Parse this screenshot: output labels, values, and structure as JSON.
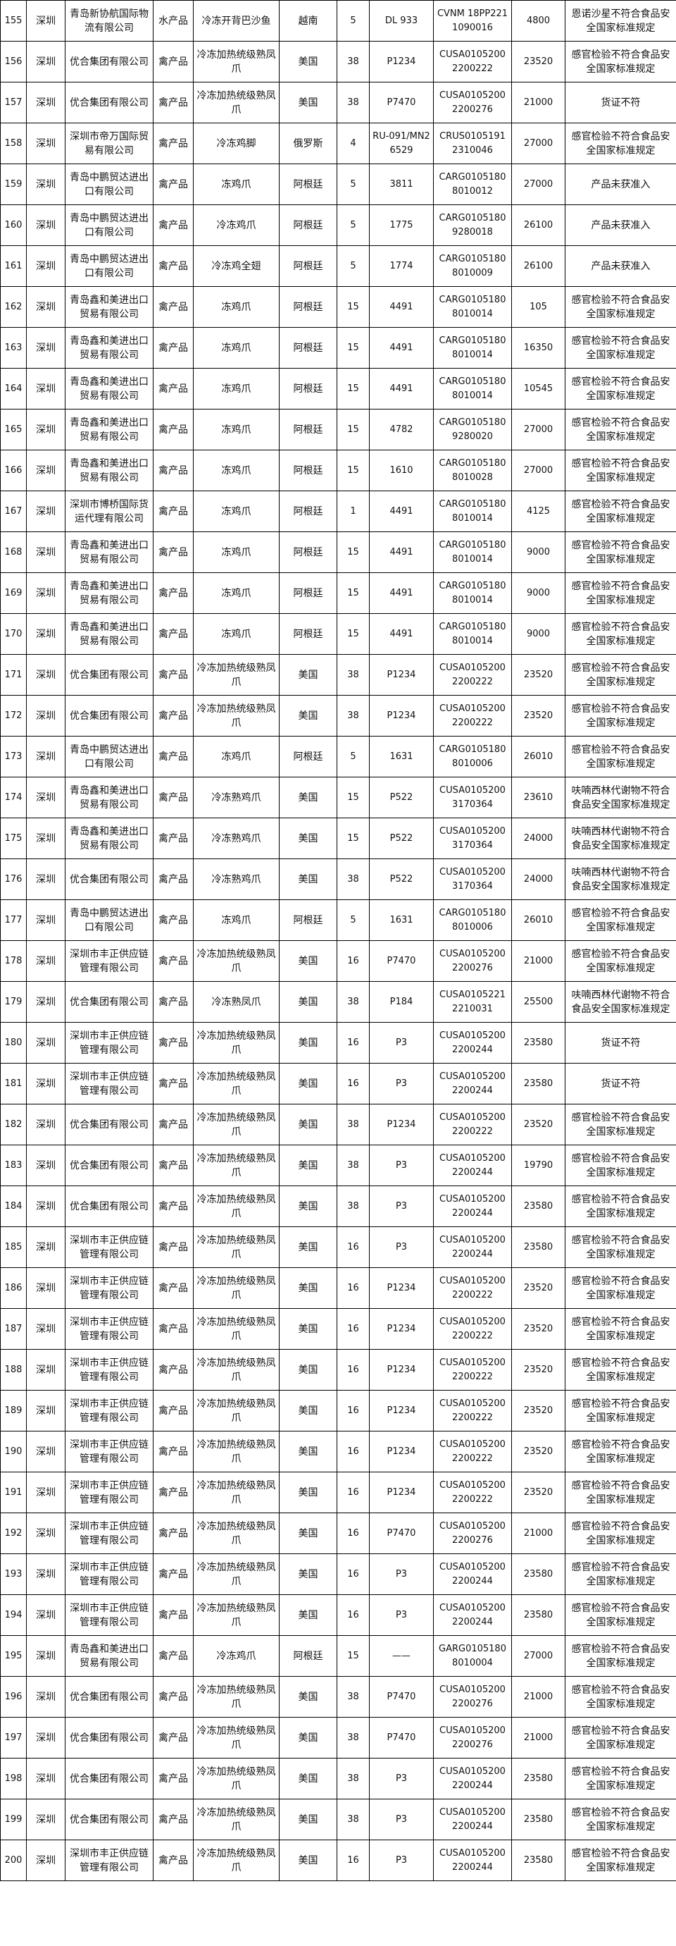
{
  "table": {
    "rows": [
      [
        "155",
        "深圳",
        "青岛新协航国际物流有限公司",
        "水产品",
        "冷冻开背巴沙鱼",
        "越南",
        "5",
        "DL 933",
        "CVNM 18PP2211090016",
        "4800",
        "恩诺沙星不符合食品安全国家标准规定"
      ],
      [
        "156",
        "深圳",
        "优合集团有限公司",
        "禽产品",
        "冷冻加热统级熟凤爪",
        "美国",
        "38",
        "P1234",
        "CUSA01052002200222",
        "23520",
        "感官检验不符合食品安全国家标准规定"
      ],
      [
        "157",
        "深圳",
        "优合集团有限公司",
        "禽产品",
        "冷冻加热统级熟凤爪",
        "美国",
        "38",
        "P7470",
        "CUSA01052002200276",
        "21000",
        "货证不符"
      ],
      [
        "158",
        "深圳",
        "深圳市帝万国际贸易有限公司",
        "禽产品",
        "冷冻鸡脚",
        "俄罗斯",
        "4",
        "RU-091/MN26529",
        "CRUS01051912310046",
        "27000",
        "感官检验不符合食品安全国家标准规定"
      ],
      [
        "159",
        "深圳",
        "青岛中鹏贸达进出口有限公司",
        "禽产品",
        "冻鸡爪",
        "阿根廷",
        "5",
        "3811",
        "CARG01051808010012",
        "27000",
        "产品未获准入"
      ],
      [
        "160",
        "深圳",
        "青岛中鹏贸达进出口有限公司",
        "禽产品",
        "冷冻鸡爪",
        "阿根廷",
        "5",
        "1775",
        "CARG01051809280018",
        "26100",
        "产品未获准入"
      ],
      [
        "161",
        "深圳",
        "青岛中鹏贸达进出口有限公司",
        "禽产品",
        "冷冻鸡全翅",
        "阿根廷",
        "5",
        "1774",
        "CARG01051808010009",
        "26100",
        "产品未获准入"
      ],
      [
        "162",
        "深圳",
        "青岛鑫和美进出口贸易有限公司",
        "禽产品",
        "冻鸡爪",
        "阿根廷",
        "15",
        "4491",
        "CARG01051808010014",
        "105",
        "感官检验不符合食品安全国家标准规定"
      ],
      [
        "163",
        "深圳",
        "青岛鑫和美进出口贸易有限公司",
        "禽产品",
        "冻鸡爪",
        "阿根廷",
        "15",
        "4491",
        "CARG01051808010014",
        "16350",
        "感官检验不符合食品安全国家标准规定"
      ],
      [
        "164",
        "深圳",
        "青岛鑫和美进出口贸易有限公司",
        "禽产品",
        "冻鸡爪",
        "阿根廷",
        "15",
        "4491",
        "CARG01051808010014",
        "10545",
        "感官检验不符合食品安全国家标准规定"
      ],
      [
        "165",
        "深圳",
        "青岛鑫和美进出口贸易有限公司",
        "禽产品",
        "冻鸡爪",
        "阿根廷",
        "15",
        "4782",
        "CARG01051809280020",
        "27000",
        "感官检验不符合食品安全国家标准规定"
      ],
      [
        "166",
        "深圳",
        "青岛鑫和美进出口贸易有限公司",
        "禽产品",
        "冻鸡爪",
        "阿根廷",
        "15",
        "1610",
        "CARG01051808010028",
        "27000",
        "感官检验不符合食品安全国家标准规定"
      ],
      [
        "167",
        "深圳",
        "深圳市博桥国际货运代理有限公司",
        "禽产品",
        "冻鸡爪",
        "阿根廷",
        "1",
        "4491",
        "CARG01051808010014",
        "4125",
        "感官检验不符合食品安全国家标准规定"
      ],
      [
        "168",
        "深圳",
        "青岛鑫和美进出口贸易有限公司",
        "禽产品",
        "冻鸡爪",
        "阿根廷",
        "15",
        "4491",
        "CARG01051808010014",
        "9000",
        "感官检验不符合食品安全国家标准规定"
      ],
      [
        "169",
        "深圳",
        "青岛鑫和美进出口贸易有限公司",
        "禽产品",
        "冻鸡爪",
        "阿根廷",
        "15",
        "4491",
        "CARG01051808010014",
        "9000",
        "感官检验不符合食品安全国家标准规定"
      ],
      [
        "170",
        "深圳",
        "青岛鑫和美进出口贸易有限公司",
        "禽产品",
        "冻鸡爪",
        "阿根廷",
        "15",
        "4491",
        "CARG01051808010014",
        "9000",
        "感官检验不符合食品安全国家标准规定"
      ],
      [
        "171",
        "深圳",
        "优合集团有限公司",
        "禽产品",
        "冷冻加热统级熟凤爪",
        "美国",
        "38",
        "P1234",
        "CUSA01052002200222",
        "23520",
        "感官检验不符合食品安全国家标准规定"
      ],
      [
        "172",
        "深圳",
        "优合集团有限公司",
        "禽产品",
        "冷冻加热统级熟凤爪",
        "美国",
        "38",
        "P1234",
        "CUSA01052002200222",
        "23520",
        "感官检验不符合食品安全国家标准规定"
      ],
      [
        "173",
        "深圳",
        "青岛中鹏贸达进出口有限公司",
        "禽产品",
        "冻鸡爪",
        "阿根廷",
        "5",
        "1631",
        "CARG01051808010006",
        "26010",
        "感官检验不符合食品安全国家标准规定"
      ],
      [
        "174",
        "深圳",
        "青岛鑫和美进出口贸易有限公司",
        "禽产品",
        "冷冻熟鸡爪",
        "美国",
        "15",
        "P522",
        "CUSA01052003170364",
        "23610",
        "呋喃西林代谢物不符合食品安全国家标准规定"
      ],
      [
        "175",
        "深圳",
        "青岛鑫和美进出口贸易有限公司",
        "禽产品",
        "冷冻熟鸡爪",
        "美国",
        "15",
        "P522",
        "CUSA01052003170364",
        "24000",
        "呋喃西林代谢物不符合食品安全国家标准规定"
      ],
      [
        "176",
        "深圳",
        "优合集团有限公司",
        "禽产品",
        "冷冻熟鸡爪",
        "美国",
        "38",
        "P522",
        "CUSA01052003170364",
        "24000",
        "呋喃西林代谢物不符合食品安全国家标准规定"
      ],
      [
        "177",
        "深圳",
        "青岛中鹏贸达进出口有限公司",
        "禽产品",
        "冻鸡爪",
        "阿根廷",
        "5",
        "1631",
        "CARG01051808010006",
        "26010",
        "感官检验不符合食品安全国家标准规定"
      ],
      [
        "178",
        "深圳",
        "深圳市丰正供应链管理有限公司",
        "禽产品",
        "冷冻加热统级熟凤爪",
        "美国",
        "16",
        "P7470",
        "CUSA01052002200276",
        "21000",
        "感官检验不符合食品安全国家标准规定"
      ],
      [
        "179",
        "深圳",
        "优合集团有限公司",
        "禽产品",
        "冷冻熟凤爪",
        "美国",
        "38",
        "P184",
        "CUSA01052212210031",
        "25500",
        "呋喃西林代谢物不符合食品安全国家标准规定"
      ],
      [
        "180",
        "深圳",
        "深圳市丰正供应链管理有限公司",
        "禽产品",
        "冷冻加热统级熟凤爪",
        "美国",
        "16",
        "P3",
        "CUSA01052002200244",
        "23580",
        "货证不符"
      ],
      [
        "181",
        "深圳",
        "深圳市丰正供应链管理有限公司",
        "禽产品",
        "冷冻加热统级熟凤爪",
        "美国",
        "16",
        "P3",
        "CUSA01052002200244",
        "23580",
        "货证不符"
      ],
      [
        "182",
        "深圳",
        "优合集团有限公司",
        "禽产品",
        "冷冻加热统级熟凤爪",
        "美国",
        "38",
        "P1234",
        "CUSA01052002200222",
        "23520",
        "感官检验不符合食品安全国家标准规定"
      ],
      [
        "183",
        "深圳",
        "优合集团有限公司",
        "禽产品",
        "冷冻加热统级熟凤爪",
        "美国",
        "38",
        "P3",
        "CUSA01052002200244",
        "19790",
        "感官检验不符合食品安全国家标准规定"
      ],
      [
        "184",
        "深圳",
        "优合集团有限公司",
        "禽产品",
        "冷冻加热统级熟凤爪",
        "美国",
        "38",
        "P3",
        "CUSA01052002200244",
        "23580",
        "感官检验不符合食品安全国家标准规定"
      ],
      [
        "185",
        "深圳",
        "深圳市丰正供应链管理有限公司",
        "禽产品",
        "冷冻加热统级熟凤爪",
        "美国",
        "16",
        "P3",
        "CUSA01052002200244",
        "23580",
        "感官检验不符合食品安全国家标准规定"
      ],
      [
        "186",
        "深圳",
        "深圳市丰正供应链管理有限公司",
        "禽产品",
        "冷冻加热统级熟凤爪",
        "美国",
        "16",
        "P1234",
        "CUSA01052002200222",
        "23520",
        "感官检验不符合食品安全国家标准规定"
      ],
      [
        "187",
        "深圳",
        "深圳市丰正供应链管理有限公司",
        "禽产品",
        "冷冻加热统级熟凤爪",
        "美国",
        "16",
        "P1234",
        "CUSA01052002200222",
        "23520",
        "感官检验不符合食品安全国家标准规定"
      ],
      [
        "188",
        "深圳",
        "深圳市丰正供应链管理有限公司",
        "禽产品",
        "冷冻加热统级熟凤爪",
        "美国",
        "16",
        "P1234",
        "CUSA01052002200222",
        "23520",
        "感官检验不符合食品安全国家标准规定"
      ],
      [
        "189",
        "深圳",
        "深圳市丰正供应链管理有限公司",
        "禽产品",
        "冷冻加热统级熟凤爪",
        "美国",
        "16",
        "P1234",
        "CUSA01052002200222",
        "23520",
        "感官检验不符合食品安全国家标准规定"
      ],
      [
        "190",
        "深圳",
        "深圳市丰正供应链管理有限公司",
        "禽产品",
        "冷冻加热统级熟凤爪",
        "美国",
        "16",
        "P1234",
        "CUSA01052002200222",
        "23520",
        "感官检验不符合食品安全国家标准规定"
      ],
      [
        "191",
        "深圳",
        "深圳市丰正供应链管理有限公司",
        "禽产品",
        "冷冻加热统级熟凤爪",
        "美国",
        "16",
        "P1234",
        "CUSA01052002200222",
        "23520",
        "感官检验不符合食品安全国家标准规定"
      ],
      [
        "192",
        "深圳",
        "深圳市丰正供应链管理有限公司",
        "禽产品",
        "冷冻加热统级熟凤爪",
        "美国",
        "16",
        "P7470",
        "CUSA01052002200276",
        "21000",
        "感官检验不符合食品安全国家标准规定"
      ],
      [
        "193",
        "深圳",
        "深圳市丰正供应链管理有限公司",
        "禽产品",
        "冷冻加热统级熟凤爪",
        "美国",
        "16",
        "P3",
        "CUSA01052002200244",
        "23580",
        "感官检验不符合食品安全国家标准规定"
      ],
      [
        "194",
        "深圳",
        "深圳市丰正供应链管理有限公司",
        "禽产品",
        "冷冻加热统级熟凤爪",
        "美国",
        "16",
        "P3",
        "CUSA01052002200244",
        "23580",
        "感官检验不符合食品安全国家标准规定"
      ],
      [
        "195",
        "深圳",
        "青岛鑫和美进出口贸易有限公司",
        "禽产品",
        "冷冻鸡爪",
        "阿根廷",
        "15",
        "——",
        "GARG01051808010004",
        "27000",
        "感官检验不符合食品安全国家标准规定"
      ],
      [
        "196",
        "深圳",
        "优合集团有限公司",
        "禽产品",
        "冷冻加热统级熟凤爪",
        "美国",
        "38",
        "P7470",
        "CUSA01052002200276",
        "21000",
        "感官检验不符合食品安全国家标准规定"
      ],
      [
        "197",
        "深圳",
        "优合集团有限公司",
        "禽产品",
        "冷冻加热统级熟凤爪",
        "美国",
        "38",
        "P7470",
        "CUSA01052002200276",
        "21000",
        "感官检验不符合食品安全国家标准规定"
      ],
      [
        "198",
        "深圳",
        "优合集团有限公司",
        "禽产品",
        "冷冻加热统级熟凤爪",
        "美国",
        "38",
        "P3",
        "CUSA01052002200244",
        "23580",
        "感官检验不符合食品安全国家标准规定"
      ],
      [
        "199",
        "深圳",
        "优合集团有限公司",
        "禽产品",
        "冷冻加热统级熟凤爪",
        "美国",
        "38",
        "P3",
        "CUSA01052002200244",
        "23580",
        "感官检验不符合食品安全国家标准规定"
      ],
      [
        "200",
        "深圳",
        "深圳市丰正供应链管理有限公司",
        "禽产品",
        "冷冻加热统级熟凤爪",
        "美国",
        "16",
        "P3",
        "CUSA01052002200244",
        "23580",
        "感官检验不符合食品安全国家标准规定"
      ]
    ]
  }
}
